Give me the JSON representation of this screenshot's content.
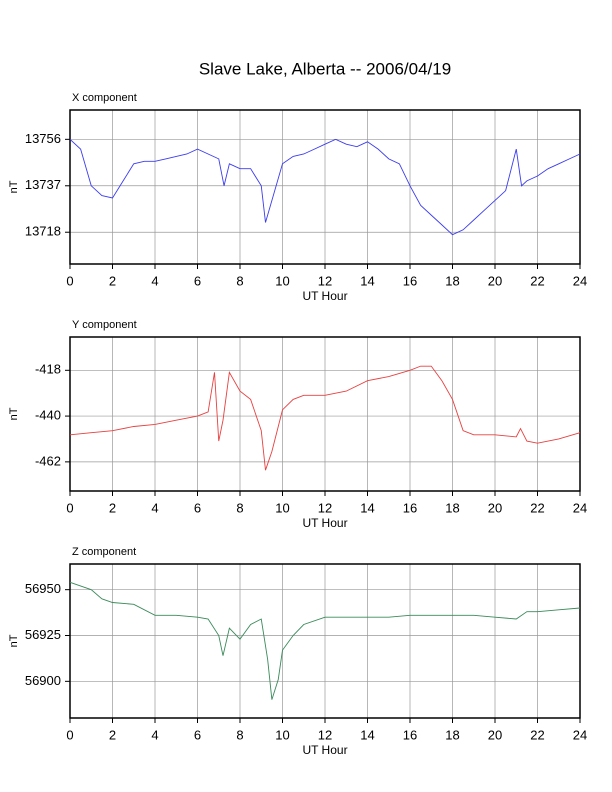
{
  "title": "Slave Lake, Alberta -- 2006/04/19",
  "chart_data": [
    {
      "type": "line",
      "title": "X component",
      "xlabel": "UT Hour",
      "ylabel": "nT",
      "color": "#3c3cf0",
      "grid": true,
      "xlim": [
        0,
        24
      ],
      "xticks": [
        0,
        2,
        4,
        6,
        8,
        10,
        12,
        14,
        16,
        18,
        20,
        22,
        24
      ],
      "ylim": [
        13705,
        13768
      ],
      "yticks": [
        13718,
        13737,
        13756
      ],
      "x": [
        0,
        0.5,
        1,
        1.5,
        2,
        2.5,
        3,
        3.5,
        4,
        4.5,
        5,
        5.5,
        6,
        6.5,
        7,
        7.25,
        7.5,
        8,
        8.5,
        9,
        9.2,
        9.5,
        10,
        10.5,
        11,
        11.5,
        12,
        12.5,
        13,
        13.5,
        14,
        14.5,
        15,
        15.5,
        16,
        16.5,
        17,
        17.5,
        18,
        18.5,
        19,
        19.5,
        20,
        20.5,
        21,
        21.25,
        21.5,
        22,
        22.5,
        23,
        23.5,
        24
      ],
      "values": [
        13756,
        13752,
        13737,
        13733,
        13732,
        13739,
        13746,
        13747,
        13747,
        13748,
        13749,
        13750,
        13752,
        13750,
        13748,
        13737,
        13746,
        13744,
        13744,
        13737,
        13722,
        13731,
        13746,
        13749,
        13750,
        13752,
        13754,
        13756,
        13754,
        13753,
        13755,
        13752,
        13748,
        13746,
        13737,
        13729,
        13725,
        13721,
        13717,
        13719,
        13723,
        13727,
        13731,
        13735,
        13752,
        13737,
        13739,
        13741,
        13744,
        13746,
        13748,
        13750
      ]
    },
    {
      "type": "line",
      "title": "Y component",
      "xlabel": "UT Hour",
      "ylabel": "nT",
      "color": "#e84040",
      "grid": true,
      "xlim": [
        0,
        24
      ],
      "xticks": [
        0,
        2,
        4,
        6,
        8,
        10,
        12,
        14,
        16,
        18,
        20,
        22,
        24
      ],
      "ylim": [
        -476,
        -402
      ],
      "yticks": [
        -462,
        -440,
        -418
      ],
      "x": [
        0,
        1,
        2,
        3,
        4,
        5,
        6,
        6.5,
        6.8,
        7,
        7.2,
        7.5,
        8,
        8.5,
        9,
        9.2,
        9.5,
        10,
        10.5,
        11,
        12,
        13,
        14,
        15,
        16,
        16.5,
        17,
        17.5,
        18,
        18.5,
        19,
        20,
        21,
        21.2,
        21.5,
        22,
        23,
        24
      ],
      "values": [
        -449,
        -448,
        -447,
        -445,
        -444,
        -442,
        -440,
        -438,
        -419,
        -452,
        -442,
        -419,
        -428,
        -432,
        -447,
        -466,
        -457,
        -437,
        -432,
        -430,
        -430,
        -428,
        -423,
        -421,
        -418,
        -416,
        -416,
        -423,
        -432,
        -447,
        -449,
        -449,
        -450,
        -446,
        -452,
        -453,
        -451,
        -448
      ]
    },
    {
      "type": "line",
      "title": "Z component",
      "xlabel": "UT Hour",
      "ylabel": "nT",
      "color": "#3a8a5a",
      "grid": true,
      "xlim": [
        0,
        24
      ],
      "xticks": [
        0,
        2,
        4,
        6,
        8,
        10,
        12,
        14,
        16,
        18,
        20,
        22,
        24
      ],
      "ylim": [
        56880,
        56964
      ],
      "yticks": [
        56900,
        56925,
        56950
      ],
      "x": [
        0,
        1,
        1.5,
        2,
        3,
        4,
        5,
        6,
        6.5,
        7,
        7.2,
        7.5,
        8,
        8.5,
        9,
        9.3,
        9.5,
        9.8,
        10,
        10.5,
        11,
        12,
        13,
        14,
        15,
        16,
        17,
        18,
        19,
        20,
        21,
        21.5,
        22,
        23,
        24
      ],
      "values": [
        56954,
        56950,
        56945,
        56943,
        56942,
        56936,
        56936,
        56935,
        56934,
        56925,
        56914,
        56929,
        56923,
        56931,
        56934,
        56912,
        56890,
        56901,
        56917,
        56925,
        56931,
        56935,
        56935,
        56935,
        56935,
        56936,
        56936,
        56936,
        56936,
        56935,
        56934,
        56938,
        56938,
        56939,
        56940
      ]
    }
  ]
}
